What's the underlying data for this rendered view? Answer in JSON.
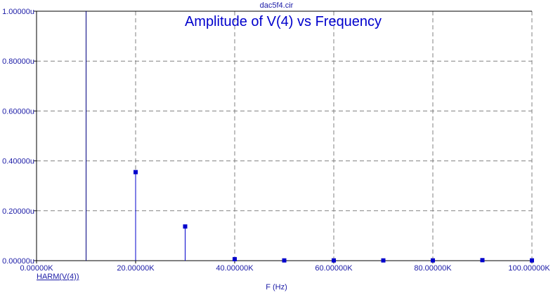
{
  "file_title": "dac5f4.cir",
  "series_link": "HARM(V(4))",
  "colors": {
    "axis": "#000000",
    "grid": "#808080",
    "trace": "#0000cc",
    "text": "#1a1aa6",
    "title": "#0000cc"
  },
  "chart_data": {
    "type": "stem",
    "title": "Amplitude of V(4) vs Frequency",
    "xlabel": "F (Hz)",
    "ylabel": "",
    "xlim": [
      0,
      100000
    ],
    "ylim": [
      0,
      1e-06
    ],
    "x_tick_labels": [
      "0.00000K",
      "20.00000K",
      "40.00000K",
      "60.00000K",
      "80.00000K",
      "100.00000K"
    ],
    "x_tick_values": [
      0,
      20000,
      40000,
      60000,
      80000,
      100000
    ],
    "y_tick_labels": [
      "0.00000u",
      "0.20000u",
      "0.40000u",
      "0.60000u",
      "0.80000u",
      "1.00000u"
    ],
    "y_tick_values": [
      0,
      2e-07,
      4e-07,
      6e-07,
      8e-07,
      1e-06
    ],
    "x_gridlines": [
      20000,
      40000,
      60000,
      80000,
      100000
    ],
    "grid": true,
    "series": [
      {
        "x": [
          10000,
          20000,
          30000,
          40000,
          50000,
          60000,
          70000,
          80000,
          90000,
          100000
        ],
        "values": [
          1e-06,
          3.55e-07,
          1.37e-07,
          6e-09,
          1e-09,
          1e-09,
          1e-09,
          1e-09,
          2e-09,
          1e-09
        ]
      }
    ]
  }
}
